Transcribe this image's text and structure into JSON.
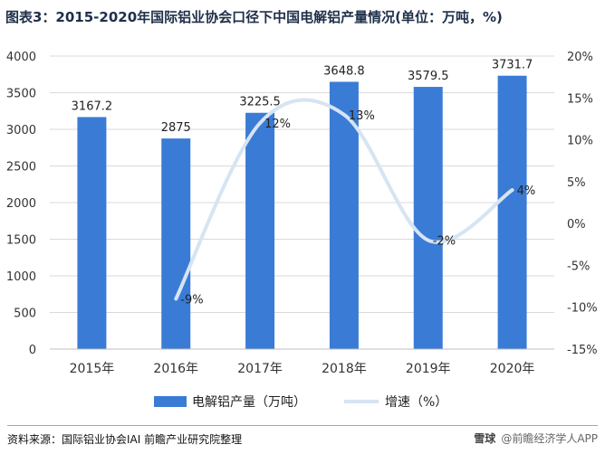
{
  "title": "图表3：2015-2020年国际铝业协会口径下中国电解铝产量情况(单位：万吨，%)",
  "chart_data": {
    "type": "bar+line",
    "categories": [
      "2015年",
      "2016年",
      "2017年",
      "2018年",
      "2019年",
      "2020年"
    ],
    "series": [
      {
        "name": "电解铝产量（万吨）",
        "type": "bar",
        "axis": "left",
        "values": [
          3167.2,
          2875,
          3225.5,
          3648.8,
          3579.5,
          3731.7
        ],
        "labels": [
          "3167.2",
          "2875",
          "3225.5",
          "3648.8",
          "3579.5",
          "3731.7"
        ]
      },
      {
        "name": "增速（%）",
        "type": "line",
        "axis": "right",
        "values": [
          null,
          -9,
          12,
          13,
          -2,
          4
        ],
        "labels": [
          "",
          "-9%",
          "12%",
          "13%",
          "-2%",
          "4%"
        ]
      }
    ],
    "left_axis": {
      "min": 0,
      "max": 4000,
      "step": 500,
      "ticks": [
        "0",
        "500",
        "1000",
        "1500",
        "2000",
        "2500",
        "3000",
        "3500",
        "4000"
      ]
    },
    "right_axis": {
      "min": -15,
      "max": 20,
      "step": 5,
      "ticks": [
        "-15%",
        "-10%",
        "-5%",
        "0%",
        "5%",
        "10%",
        "15%",
        "20%"
      ]
    },
    "grid": "horizontal",
    "legend_position": "bottom",
    "colors": {
      "bar": "#3a7bd5",
      "line": "#d6e4f3",
      "grid": "#d9d9d9",
      "axis_text": "#333333"
    }
  },
  "footer": {
    "source": "资料来源：国际铝业协会IAI 前瞻产业研究院整理",
    "watermark_logo": "雪球",
    "watermark_text": "@前瞻经济学人APP"
  }
}
